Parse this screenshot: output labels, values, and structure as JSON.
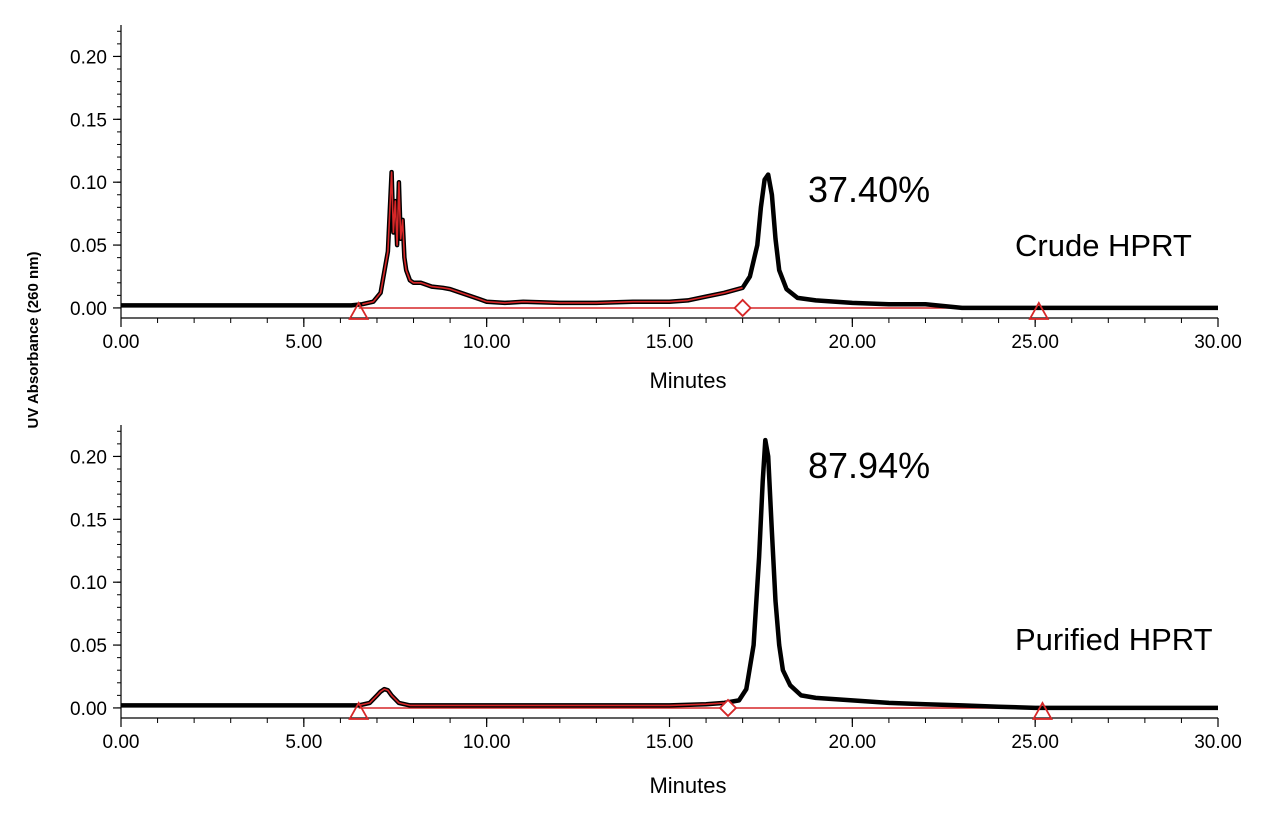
{
  "ylabel": "UV Absorbance (260 nm)",
  "colors": {
    "trace": "#000000",
    "integration": "#d62728"
  },
  "chart_data": [
    {
      "type": "line",
      "xlabel": "Minutes",
      "ylabel": "UV Absorbance (260 nm)",
      "xlim": [
        0,
        30
      ],
      "ylim": [
        -0.008,
        0.225
      ],
      "xticks": [
        "0.00",
        "5.00",
        "10.00",
        "15.00",
        "20.00",
        "25.00",
        "30.00"
      ],
      "yticks": [
        "0.00",
        "0.05",
        "0.10",
        "0.15",
        "0.20"
      ],
      "grid": false,
      "annotations": [
        {
          "text": "37.40%"
        },
        {
          "text": "Crude HPRT"
        }
      ],
      "series": [
        {
          "x": [
            0,
            6.3,
            6.6,
            6.9,
            7.1,
            7.3,
            7.4,
            7.45,
            7.5,
            7.55,
            7.6,
            7.65,
            7.7,
            7.75,
            7.8,
            7.9,
            8.0,
            8.2,
            8.5,
            8.8,
            9.0,
            9.2,
            9.5,
            9.8,
            10.0,
            10.5,
            11,
            12,
            13,
            14,
            15,
            15.5,
            16,
            16.5,
            17.0,
            17.2,
            17.4,
            17.5,
            17.6,
            17.7,
            17.8,
            17.9,
            18.0,
            18.2,
            18.5,
            19,
            20,
            21,
            22,
            23,
            24,
            25,
            26,
            28,
            30
          ],
          "y": [
            0.002,
            0.002,
            0.003,
            0.005,
            0.012,
            0.045,
            0.108,
            0.06,
            0.085,
            0.05,
            0.1,
            0.055,
            0.07,
            0.04,
            0.03,
            0.022,
            0.02,
            0.02,
            0.017,
            0.016,
            0.015,
            0.013,
            0.01,
            0.007,
            0.005,
            0.004,
            0.005,
            0.004,
            0.004,
            0.005,
            0.005,
            0.006,
            0.009,
            0.012,
            0.016,
            0.025,
            0.05,
            0.08,
            0.102,
            0.106,
            0.09,
            0.055,
            0.03,
            0.015,
            0.008,
            0.006,
            0.004,
            0.003,
            0.003,
            0.0,
            0.0,
            0.0,
            0.0,
            0.0,
            0.0
          ]
        }
      ],
      "integration_markers": [
        {
          "shape": "triangle",
          "x": 6.5
        },
        {
          "shape": "diamond",
          "x": 17.0
        },
        {
          "shape": "triangle",
          "x": 25.1
        }
      ]
    },
    {
      "type": "line",
      "xlabel": "Minutes",
      "ylabel": "UV Absorbance (260 nm)",
      "xlim": [
        0,
        30
      ],
      "ylim": [
        -0.008,
        0.225
      ],
      "xticks": [
        "0.00",
        "5.00",
        "10.00",
        "15.00",
        "20.00",
        "25.00",
        "30.00"
      ],
      "yticks": [
        "0.00",
        "0.05",
        "0.10",
        "0.15",
        "0.20"
      ],
      "grid": false,
      "annotations": [
        {
          "text": "87.94%"
        },
        {
          "text": "Purified HPRT"
        }
      ],
      "series": [
        {
          "x": [
            0,
            6.5,
            6.8,
            7.0,
            7.1,
            7.2,
            7.3,
            7.4,
            7.6,
            7.9,
            8.5,
            10,
            12,
            14,
            15,
            16,
            16.5,
            16.9,
            17.1,
            17.3,
            17.45,
            17.55,
            17.62,
            17.7,
            17.8,
            17.9,
            18.0,
            18.1,
            18.3,
            18.6,
            19,
            19.5,
            20,
            21,
            22,
            23,
            24,
            25,
            26,
            28,
            30
          ],
          "y": [
            0.002,
            0.002,
            0.004,
            0.01,
            0.013,
            0.015,
            0.014,
            0.01,
            0.004,
            0.002,
            0.002,
            0.002,
            0.002,
            0.002,
            0.002,
            0.003,
            0.004,
            0.006,
            0.015,
            0.05,
            0.12,
            0.18,
            0.213,
            0.2,
            0.14,
            0.085,
            0.05,
            0.03,
            0.018,
            0.01,
            0.008,
            0.007,
            0.006,
            0.004,
            0.003,
            0.002,
            0.001,
            0.0,
            0.0,
            0.0,
            0.0
          ]
        }
      ],
      "integration_markers": [
        {
          "shape": "triangle",
          "x": 6.5
        },
        {
          "shape": "diamond",
          "x": 16.6
        },
        {
          "shape": "triangle",
          "x": 25.2
        }
      ]
    }
  ]
}
